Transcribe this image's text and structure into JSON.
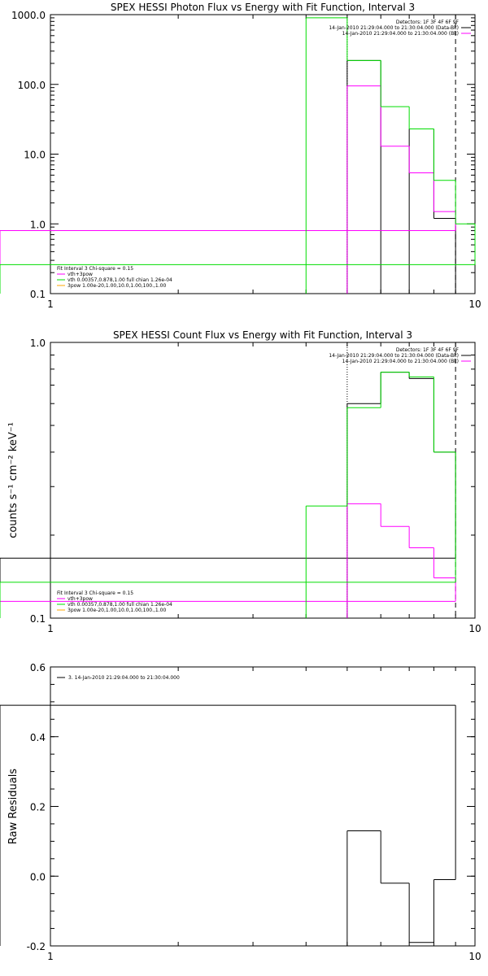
{
  "chart_data": [
    {
      "type": "line",
      "title": "SPEX HESSI Photon Flux vs Energy with Fit Function, Interval 3",
      "xlabel": "",
      "ylabel": "",
      "x_scale": "log",
      "y_scale": "log",
      "xlim": [
        1,
        10
      ],
      "ylim": [
        0.1,
        1000
      ],
      "x_ticks": [
        {
          "v": 1,
          "t": "1"
        },
        {
          "v": 10,
          "t": "10"
        }
      ],
      "y_ticks": [
        {
          "v": 0.1,
          "t": "0.1"
        },
        {
          "v": 1,
          "t": "1.0"
        },
        {
          "v": 10,
          "t": "10.0"
        },
        {
          "v": 100,
          "t": "100.0"
        },
        {
          "v": 1000,
          "t": "1000.0"
        }
      ],
      "vlines": [
        {
          "x": 5.0,
          "style": "dotted"
        },
        {
          "x": 9.0,
          "style": "dashed"
        }
      ],
      "info_lines": [
        "Detectors: 1F 3F 4F 6F 9F",
        "14-Jan-2010 21:29:04.000 to 21:30:04.000 (Data-Bk)",
        "14-Jan-2010 21:29:04.000 to 21:30:04.000 (Bk)"
      ],
      "legend_lines": [
        "Fit Interval 3   Chi-square = 0.15",
        "vth+3pow",
        "vth 0.00357,0.878,1.00  full chian 1.26e-04",
        "3pow 1.00e-20,1.00,10.0,1.00,100.,1.00"
      ],
      "series": [
        {
          "name": "Data-Bk",
          "color": "#000000",
          "edges": [
            4.0,
            5.0,
            6.0,
            7.0,
            8.0,
            9.0
          ],
          "values": [
            0,
            220,
            0,
            23,
            1.2
          ]
        },
        {
          "name": "Bk",
          "color": "#ff00ff",
          "edges": [
            5.0,
            6.0,
            7.0,
            8.0,
            9.0
          ],
          "values": [
            95,
            13,
            5.4,
            1.5,
            0.8
          ]
        },
        {
          "name": "vth+3pow",
          "color": "#00dd00",
          "edges": [
            4.0,
            5.0,
            6.0,
            7.0,
            8.0,
            9.0,
            10.0
          ],
          "values": [
            900,
            220,
            48,
            23,
            4.2,
            1.0,
            0.26
          ]
        }
      ]
    },
    {
      "type": "line",
      "title": "SPEX HESSI Count Flux vs Energy with Fit Function, Interval 3",
      "xlabel": "",
      "ylabel": "counts s⁻¹ cm⁻² keV⁻¹",
      "x_scale": "log",
      "y_scale": "log",
      "xlim": [
        1,
        10
      ],
      "ylim": [
        0.1,
        1.0
      ],
      "x_ticks": [
        {
          "v": 1,
          "t": "1"
        },
        {
          "v": 10,
          "t": "10"
        }
      ],
      "y_ticks": [
        {
          "v": 0.1,
          "t": "0.1"
        },
        {
          "v": 1.0,
          "t": "1.0"
        }
      ],
      "vlines": [
        {
          "x": 5.0,
          "style": "dotted"
        },
        {
          "x": 9.0,
          "style": "dashed"
        }
      ],
      "info_lines": [
        "Detectors: 1F 3F 4F 6F 9F",
        "14-Jan-2010 21:29:04.000 to 21:30:04.000 (Data-Bk)",
        "14-Jan-2010 21:29:04.000 to 21:30:04.000 (Bk)"
      ],
      "legend_lines": [
        "Fit Interval 3   Chi-square = 0.15",
        "vth+3pow",
        "vth 0.00357,0.878,1.00  full chian 1.26e-04",
        "3pow 1.00e-20,1.00,10.0,1.00,100.,1.00"
      ],
      "series": [
        {
          "name": "Data-Bk",
          "color": "#000000",
          "edges": [
            5.0,
            6.0,
            7.0,
            8.0,
            9.0
          ],
          "values": [
            0.6,
            0.78,
            0.74,
            0.4,
            0.165
          ]
        },
        {
          "name": "Bk",
          "color": "#ff00ff",
          "edges": [
            5.0,
            6.0,
            7.0,
            8.0,
            9.0
          ],
          "values": [
            0.26,
            0.215,
            0.18,
            0.14,
            0.115
          ]
        },
        {
          "name": "vth+3pow",
          "color": "#00dd00",
          "edges": [
            4.0,
            5.0,
            6.0,
            7.0,
            8.0,
            9.0
          ],
          "values": [
            0.255,
            0.58,
            0.78,
            0.75,
            0.4,
            0.135
          ]
        }
      ]
    },
    {
      "type": "line",
      "title": "",
      "xlabel": "",
      "ylabel": "Raw Residuals",
      "x_scale": "log",
      "y_scale": "linear",
      "xlim": [
        1,
        10
      ],
      "ylim": [
        -0.2,
        0.6
      ],
      "x_ticks": [
        {
          "v": 1,
          "t": "1"
        },
        {
          "v": 10,
          "t": "10"
        }
      ],
      "y_ticks": [
        {
          "v": -0.2,
          "t": "-0.2"
        },
        {
          "v": 0.0,
          "t": "0.0"
        },
        {
          "v": 0.2,
          "t": "0.2"
        },
        {
          "v": 0.4,
          "t": "0.4"
        },
        {
          "v": 0.6,
          "t": "0.6"
        }
      ],
      "vlines": [],
      "info_lines": [],
      "legend_lines": [
        "3. 14-Jan-2010 21:29:04.000 to 21:30:04.000"
      ],
      "series": [
        {
          "name": "3. 14-Jan-2010 21:29:04.000 to 21:30:04.000",
          "color": "#000000",
          "edges": [
            5.0,
            6.0,
            7.0,
            8.0,
            9.0
          ],
          "values": [
            0.13,
            -0.02,
            -0.19,
            -0.01,
            0.49
          ]
        }
      ]
    }
  ]
}
